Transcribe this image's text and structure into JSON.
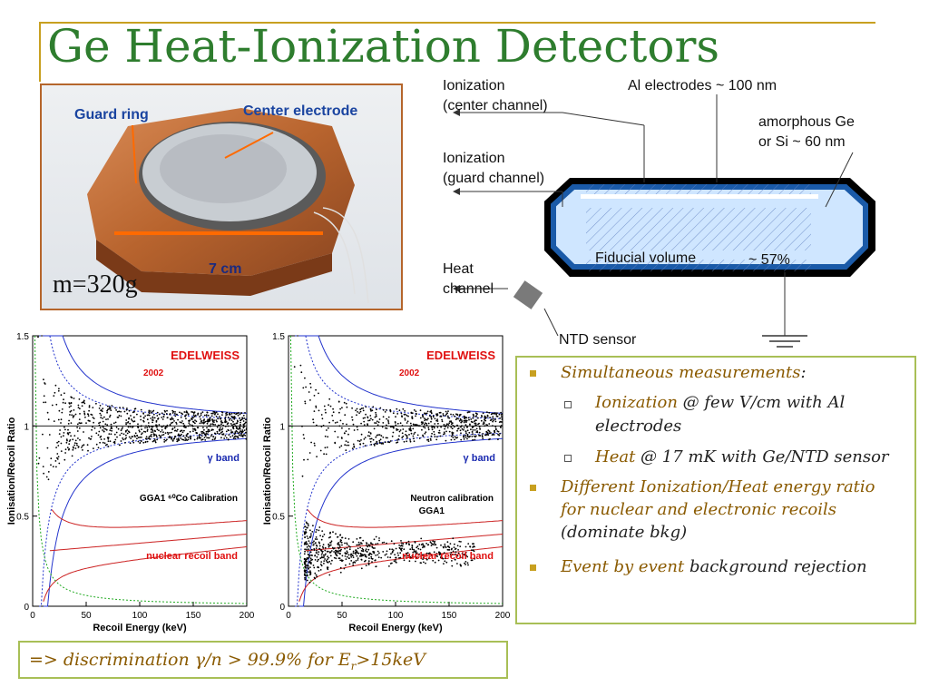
{
  "title": "Ge Heat-Ionization Detectors",
  "photo": {
    "guard_ring": "Guard ring",
    "center_electrode": "Center electrode",
    "size": "7 cm",
    "mass": "m=320g"
  },
  "diagram": {
    "ion_center": [
      "Ionization",
      "(center channel)"
    ],
    "al_electrodes": "Al electrodes ~ 100 nm",
    "amorphous": [
      "amorphous Ge",
      "or Si ~ 60 nm"
    ],
    "ion_guard": [
      "Ionization",
      "(guard channel)"
    ],
    "heat": [
      "Heat",
      "channel"
    ],
    "fiducial": "Fiducial volume",
    "percent": "~ 57%",
    "ntd": "NTD sensor"
  },
  "plots": [
    {
      "brand": "EDELWEISS",
      "year": "2002",
      "gamma": "γ band",
      "calib_line1": "GGA1 ⁶⁰Co Calibration",
      "calib_line2": "",
      "nuclear": "nuclear recoil band",
      "ylabel": "Ionisation/Recoil Ratio",
      "xlabel": "Recoil Energy (keV)",
      "yticks": [
        "0",
        "0.5",
        "1",
        "1.5"
      ],
      "xticks": [
        "0",
        "50",
        "100",
        "150",
        "200"
      ]
    },
    {
      "brand": "EDELWEISS",
      "year": "2002",
      "gamma": "γ band",
      "calib_line1": "Neutron calibration",
      "calib_line2": "GGA1",
      "nuclear": "nuclear recoil band",
      "ylabel": "Ionisation/Recoil Ratio",
      "xlabel": "Recoil Energy (keV)",
      "yticks": [
        "0",
        "0.5",
        "1",
        "1.5"
      ],
      "xticks": [
        "0",
        "50",
        "100",
        "150",
        "200"
      ]
    }
  ],
  "bullets": {
    "b1_hl": "Simultaneous measurements",
    "b1_rest": ":",
    "s1_hl": "Ionization",
    "s1_rest_a": " @ few V/cm with Al",
    "s1_rest_b": "electrodes",
    "s2_hl": "Heat",
    "s2_rest": " @ 17 mK with Ge/NTD sensor",
    "b2_hl_a": "Different Ionization/Heat energy ratio",
    "b2_hl_b": "for nuclear and electronic recoils",
    "b2_rest": "(dominate bkg)",
    "b3_hl": "Event by event",
    "b3_rest": " background rejection"
  },
  "footer": {
    "text_a": "=> discrimination γ/n > 99.9% for E",
    "sub": "r",
    "text_b": ">15keV"
  }
}
